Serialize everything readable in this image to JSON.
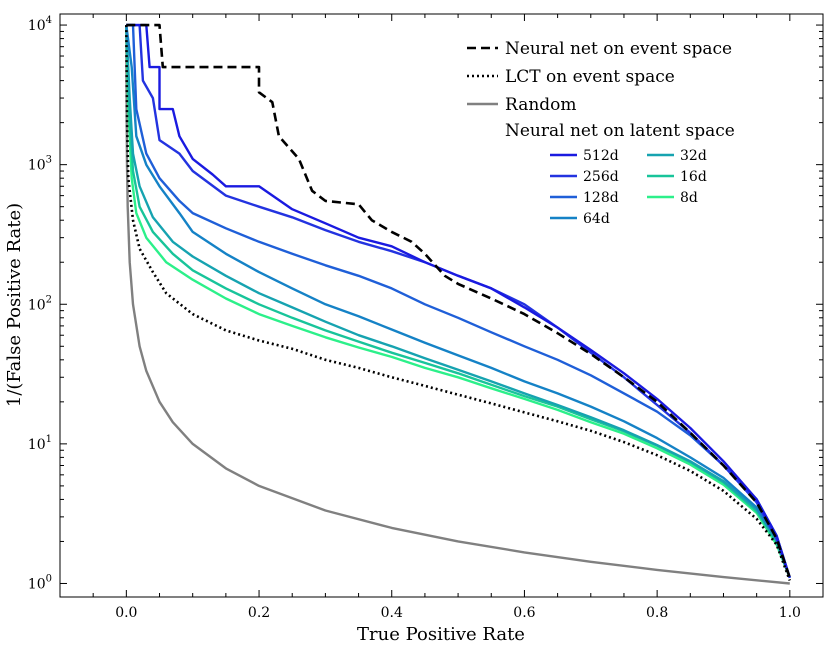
{
  "chart_data": {
    "type": "line",
    "xlabel": "True Positive Rate",
    "ylabel": "1/(False Positive Rate)",
    "xlim": [
      -0.1,
      1.05
    ],
    "ylim": [
      0.8,
      12000
    ],
    "yscale": "log",
    "grid": false,
    "legend_position": "top-right",
    "x_ticks": [
      {
        "value": 0.0,
        "label": "0.0"
      },
      {
        "value": 0.2,
        "label": "0.2"
      },
      {
        "value": 0.4,
        "label": "0.4"
      },
      {
        "value": 0.6,
        "label": "0.6"
      },
      {
        "value": 0.8,
        "label": "0.8"
      },
      {
        "value": 1.0,
        "label": "1.0"
      }
    ],
    "y_ticks": [
      {
        "value": 1,
        "base": "10",
        "exp": "0"
      },
      {
        "value": 10,
        "base": "10",
        "exp": "1"
      },
      {
        "value": 100,
        "base": "10",
        "exp": "2"
      },
      {
        "value": 1000,
        "base": "10",
        "exp": "3"
      },
      {
        "value": 10000,
        "base": "10",
        "exp": "4"
      }
    ],
    "legend_group_title": "Neural net on latent space",
    "series": [
      {
        "name": "Neural net on event space",
        "color": "#000000",
        "dash": "dashed",
        "points": [
          [
            0.0,
            10000
          ],
          [
            0.05,
            10000
          ],
          [
            0.055,
            5000
          ],
          [
            0.2,
            5000
          ],
          [
            0.2,
            3300
          ],
          [
            0.22,
            2800
          ],
          [
            0.23,
            1600
          ],
          [
            0.26,
            1100
          ],
          [
            0.28,
            650
          ],
          [
            0.3,
            550
          ],
          [
            0.35,
            520
          ],
          [
            0.37,
            400
          ],
          [
            0.4,
            330
          ],
          [
            0.43,
            280
          ],
          [
            0.45,
            230
          ],
          [
            0.48,
            160
          ],
          [
            0.5,
            140
          ],
          [
            0.55,
            110
          ],
          [
            0.6,
            85
          ],
          [
            0.65,
            62
          ],
          [
            0.7,
            44
          ],
          [
            0.75,
            30
          ],
          [
            0.8,
            20
          ],
          [
            0.85,
            12
          ],
          [
            0.9,
            7
          ],
          [
            0.95,
            3.8
          ],
          [
            0.98,
            2.1
          ],
          [
            1.0,
            1.1
          ]
        ]
      },
      {
        "name": "LCT on event space",
        "color": "#000000",
        "dash": "dotted",
        "points": [
          [
            0.0,
            10000
          ],
          [
            0.001,
            2000
          ],
          [
            0.003,
            800
          ],
          [
            0.01,
            400
          ],
          [
            0.02,
            250
          ],
          [
            0.04,
            170
          ],
          [
            0.06,
            120
          ],
          [
            0.1,
            85
          ],
          [
            0.15,
            65
          ],
          [
            0.2,
            55
          ],
          [
            0.25,
            48
          ],
          [
            0.3,
            40
          ],
          [
            0.35,
            35
          ],
          [
            0.4,
            30
          ],
          [
            0.45,
            26
          ],
          [
            0.5,
            22.5
          ],
          [
            0.55,
            19.5
          ],
          [
            0.6,
            16.8
          ],
          [
            0.65,
            14.5
          ],
          [
            0.7,
            12.4
          ],
          [
            0.75,
            10.3
          ],
          [
            0.8,
            8.3
          ],
          [
            0.85,
            6.4
          ],
          [
            0.9,
            4.6
          ],
          [
            0.95,
            2.9
          ],
          [
            0.98,
            1.9
          ],
          [
            1.0,
            1.05
          ]
        ]
      },
      {
        "name": "Random",
        "color": "#808080",
        "dash": "solid",
        "points": [
          [
            0.0,
            10000
          ],
          [
            0.0005,
            2000
          ],
          [
            0.001,
            1000
          ],
          [
            0.002,
            500
          ],
          [
            0.005,
            200
          ],
          [
            0.01,
            100
          ],
          [
            0.02,
            50
          ],
          [
            0.03,
            33.3
          ],
          [
            0.05,
            20
          ],
          [
            0.07,
            14.3
          ],
          [
            0.1,
            10
          ],
          [
            0.15,
            6.67
          ],
          [
            0.2,
            5
          ],
          [
            0.3,
            3.33
          ],
          [
            0.4,
            2.5
          ],
          [
            0.5,
            2
          ],
          [
            0.6,
            1.67
          ],
          [
            0.7,
            1.43
          ],
          [
            0.8,
            1.25
          ],
          [
            0.9,
            1.11
          ],
          [
            1.0,
            1.0
          ]
        ]
      },
      {
        "name": "512d",
        "color": "#1a1ae0",
        "dash": "solid",
        "group": "latent",
        "points": [
          [
            0.0,
            10000
          ],
          [
            0.03,
            10000
          ],
          [
            0.035,
            5000
          ],
          [
            0.05,
            5000
          ],
          [
            0.05,
            2500
          ],
          [
            0.07,
            2500
          ],
          [
            0.08,
            1600
          ],
          [
            0.1,
            1100
          ],
          [
            0.13,
            850
          ],
          [
            0.15,
            700
          ],
          [
            0.2,
            700
          ],
          [
            0.25,
            480
          ],
          [
            0.3,
            380
          ],
          [
            0.35,
            300
          ],
          [
            0.4,
            260
          ],
          [
            0.45,
            200
          ],
          [
            0.5,
            160
          ],
          [
            0.55,
            130
          ],
          [
            0.6,
            95
          ],
          [
            0.65,
            68
          ],
          [
            0.7,
            47
          ],
          [
            0.75,
            32
          ],
          [
            0.8,
            21
          ],
          [
            0.85,
            13
          ],
          [
            0.9,
            7.5
          ],
          [
            0.95,
            4
          ],
          [
            0.98,
            2.2
          ],
          [
            1.0,
            1.1
          ]
        ]
      },
      {
        "name": "256d",
        "color": "#2333e0",
        "dash": "solid",
        "group": "latent",
        "points": [
          [
            0.0,
            10000
          ],
          [
            0.02,
            10000
          ],
          [
            0.025,
            4000
          ],
          [
            0.04,
            3000
          ],
          [
            0.05,
            1500
          ],
          [
            0.08,
            1200
          ],
          [
            0.1,
            900
          ],
          [
            0.15,
            600
          ],
          [
            0.2,
            500
          ],
          [
            0.25,
            420
          ],
          [
            0.3,
            340
          ],
          [
            0.35,
            280
          ],
          [
            0.4,
            240
          ],
          [
            0.45,
            200
          ],
          [
            0.5,
            160
          ],
          [
            0.55,
            130
          ],
          [
            0.6,
            100
          ],
          [
            0.65,
            68
          ],
          [
            0.7,
            45
          ],
          [
            0.75,
            30
          ],
          [
            0.8,
            19
          ],
          [
            0.85,
            12
          ],
          [
            0.9,
            7
          ],
          [
            0.95,
            3.8
          ],
          [
            0.98,
            2.1
          ],
          [
            1.0,
            1.1
          ]
        ]
      },
      {
        "name": "128d",
        "color": "#1f5fd8",
        "dash": "solid",
        "group": "latent",
        "points": [
          [
            0.0,
            10000
          ],
          [
            0.01,
            10000
          ],
          [
            0.015,
            2500
          ],
          [
            0.03,
            1200
          ],
          [
            0.05,
            800
          ],
          [
            0.08,
            550
          ],
          [
            0.1,
            450
          ],
          [
            0.15,
            350
          ],
          [
            0.2,
            280
          ],
          [
            0.25,
            230
          ],
          [
            0.3,
            190
          ],
          [
            0.35,
            160
          ],
          [
            0.4,
            130
          ],
          [
            0.45,
            100
          ],
          [
            0.5,
            80
          ],
          [
            0.55,
            63
          ],
          [
            0.6,
            50
          ],
          [
            0.65,
            40
          ],
          [
            0.7,
            31
          ],
          [
            0.75,
            23
          ],
          [
            0.8,
            17
          ],
          [
            0.85,
            11.5
          ],
          [
            0.9,
            7
          ],
          [
            0.95,
            4
          ],
          [
            0.98,
            2.2
          ],
          [
            1.0,
            1.1
          ]
        ]
      },
      {
        "name": "64d",
        "color": "#1582c6",
        "dash": "solid",
        "group": "latent",
        "points": [
          [
            0.0,
            10000
          ],
          [
            0.008,
            5000
          ],
          [
            0.015,
            1600
          ],
          [
            0.03,
            1000
          ],
          [
            0.05,
            700
          ],
          [
            0.08,
            450
          ],
          [
            0.1,
            330
          ],
          [
            0.15,
            230
          ],
          [
            0.2,
            170
          ],
          [
            0.25,
            130
          ],
          [
            0.3,
            100
          ],
          [
            0.35,
            82
          ],
          [
            0.4,
            66
          ],
          [
            0.45,
            53
          ],
          [
            0.5,
            43
          ],
          [
            0.55,
            35
          ],
          [
            0.6,
            28
          ],
          [
            0.65,
            23
          ],
          [
            0.7,
            18.5
          ],
          [
            0.75,
            14.5
          ],
          [
            0.8,
            11
          ],
          [
            0.85,
            8
          ],
          [
            0.9,
            5.7
          ],
          [
            0.95,
            3.5
          ],
          [
            0.98,
            2.1
          ],
          [
            1.0,
            1.1
          ]
        ]
      },
      {
        "name": "32d",
        "color": "#16a3b0",
        "dash": "solid",
        "group": "latent",
        "points": [
          [
            0.0,
            10000
          ],
          [
            0.005,
            3000
          ],
          [
            0.01,
            1200
          ],
          [
            0.02,
            700
          ],
          [
            0.04,
            420
          ],
          [
            0.07,
            280
          ],
          [
            0.1,
            220
          ],
          [
            0.15,
            160
          ],
          [
            0.2,
            120
          ],
          [
            0.25,
            95
          ],
          [
            0.3,
            75
          ],
          [
            0.35,
            60
          ],
          [
            0.4,
            50
          ],
          [
            0.45,
            41
          ],
          [
            0.5,
            34
          ],
          [
            0.55,
            28
          ],
          [
            0.6,
            23
          ],
          [
            0.65,
            19
          ],
          [
            0.7,
            15.5
          ],
          [
            0.75,
            12.5
          ],
          [
            0.8,
            9.8
          ],
          [
            0.85,
            7.5
          ],
          [
            0.9,
            5.4
          ],
          [
            0.95,
            3.4
          ],
          [
            0.98,
            2
          ],
          [
            1.0,
            1.1
          ]
        ]
      },
      {
        "name": "16d",
        "color": "#18c49a",
        "dash": "solid",
        "group": "latent",
        "points": [
          [
            0.0,
            10000
          ],
          [
            0.004,
            2500
          ],
          [
            0.01,
            900
          ],
          [
            0.02,
            500
          ],
          [
            0.04,
            330
          ],
          [
            0.07,
            230
          ],
          [
            0.1,
            175
          ],
          [
            0.15,
            130
          ],
          [
            0.2,
            100
          ],
          [
            0.25,
            80
          ],
          [
            0.3,
            65
          ],
          [
            0.35,
            54
          ],
          [
            0.4,
            45
          ],
          [
            0.45,
            38
          ],
          [
            0.5,
            32
          ],
          [
            0.55,
            26.5
          ],
          [
            0.6,
            22
          ],
          [
            0.65,
            18.5
          ],
          [
            0.7,
            15
          ],
          [
            0.75,
            12.3
          ],
          [
            0.8,
            9.7
          ],
          [
            0.85,
            7.4
          ],
          [
            0.9,
            5.3
          ],
          [
            0.95,
            3.3
          ],
          [
            0.98,
            2
          ],
          [
            1.0,
            1.1
          ]
        ]
      },
      {
        "name": "8d",
        "color": "#2cf08a",
        "dash": "solid",
        "group": "latent",
        "points": [
          [
            0.0,
            10000
          ],
          [
            0.003,
            2500
          ],
          [
            0.008,
            800
          ],
          [
            0.015,
            450
          ],
          [
            0.03,
            300
          ],
          [
            0.06,
            200
          ],
          [
            0.1,
            150
          ],
          [
            0.15,
            110
          ],
          [
            0.2,
            85
          ],
          [
            0.25,
            70
          ],
          [
            0.3,
            58
          ],
          [
            0.35,
            49
          ],
          [
            0.4,
            42
          ],
          [
            0.45,
            35
          ],
          [
            0.5,
            30
          ],
          [
            0.55,
            25
          ],
          [
            0.6,
            21
          ],
          [
            0.65,
            17.5
          ],
          [
            0.7,
            14.3
          ],
          [
            0.75,
            11.8
          ],
          [
            0.8,
            9.3
          ],
          [
            0.85,
            7.1
          ],
          [
            0.9,
            5.1
          ],
          [
            0.95,
            3.2
          ],
          [
            0.98,
            1.9
          ],
          [
            1.0,
            1.1
          ]
        ]
      }
    ]
  }
}
